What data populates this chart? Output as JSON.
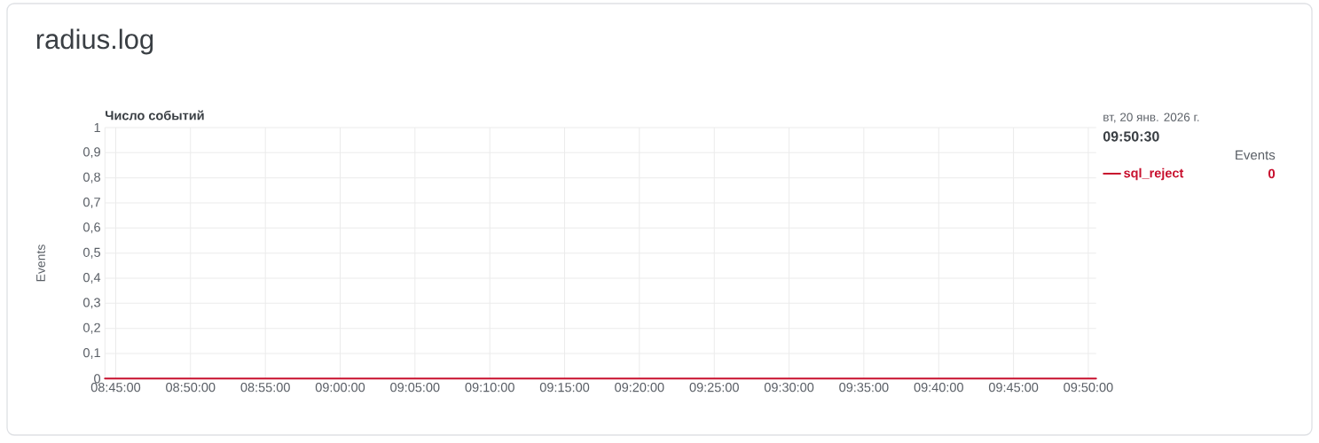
{
  "chart_data": {
    "type": "line",
    "title": "radius.log",
    "subtitle": "Число событий",
    "ylabel": "Events",
    "annotations": [
      "вт, 20 янв. 2026 г.",
      "09:50:30",
      "Events",
      "0"
    ],
    "xlim": [
      8.738,
      9.842
    ],
    "xticks": [
      {
        "value": 8.75,
        "label": "08:45:00"
      },
      {
        "value": 8.8333,
        "label": "08:50:00"
      },
      {
        "value": 8.9167,
        "label": "08:55:00"
      },
      {
        "value": 9,
        "label": "09:00:00"
      },
      {
        "value": 9.0833,
        "label": "09:05:00"
      },
      {
        "value": 9.1667,
        "label": "09:10:00"
      },
      {
        "value": 9.25,
        "label": "09:15:00"
      },
      {
        "value": 9.3333,
        "label": "09:20:00"
      },
      {
        "value": 9.4167,
        "label": "09:25:00"
      },
      {
        "value": 9.5,
        "label": "09:30:00"
      },
      {
        "value": 9.5833,
        "label": "09:35:00"
      },
      {
        "value": 9.6667,
        "label": "09:40:00"
      },
      {
        "value": 9.75,
        "label": "09:45:00"
      },
      {
        "value": 9.8333,
        "label": "09:50:00"
      }
    ],
    "ylim": [
      0,
      1
    ],
    "yticks": [
      0,
      {
        "value": 0.1,
        "label": "0,1"
      },
      {
        "value": 0.2,
        "label": "0,2"
      },
      {
        "value": 0.3,
        "label": "0,3"
      },
      {
        "value": 0.4,
        "label": "0,4"
      },
      {
        "value": 0.5,
        "label": "0,5"
      },
      {
        "value": 0.6,
        "label": "0,6"
      },
      {
        "value": 0.7,
        "label": "0,7"
      },
      {
        "value": 0.8,
        "label": "0,8"
      },
      {
        "value": 0.9,
        "label": "0,9"
      },
      1
    ],
    "grid": true,
    "legend": "right",
    "series": [
      {
        "name": "sql_reject",
        "color": "#c8102e",
        "x": [
          8.738,
          9.842
        ],
        "values": [
          0,
          0
        ]
      }
    ]
  }
}
